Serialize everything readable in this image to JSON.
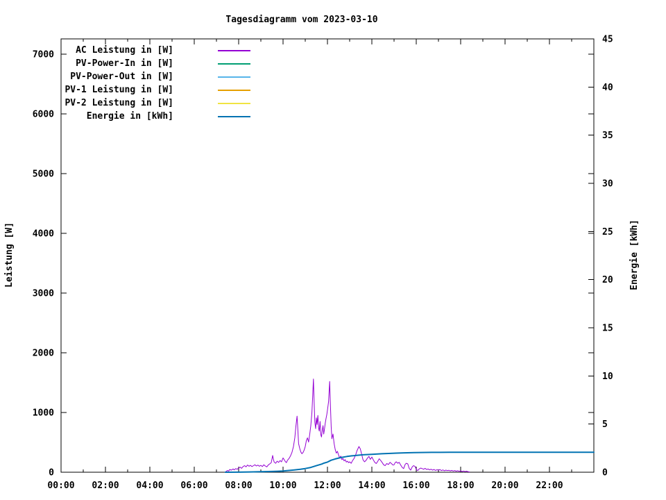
{
  "chart_data": {
    "type": "line",
    "title": "Tagesdiagramm vom 2023-03-10",
    "grid": false,
    "legend_position": "top-left",
    "x_axis": {
      "min_hour": 0,
      "max_hour": 24,
      "major_tick_every_hours": 2,
      "minor_tick_every_hours": 1,
      "tick_labels": [
        "00:00",
        "02:00",
        "04:00",
        "06:00",
        "08:00",
        "10:00",
        "12:00",
        "14:00",
        "16:00",
        "18:00",
        "20:00",
        "22:00"
      ]
    },
    "y_axis": {
      "label": "Leistung [W]",
      "min": 0,
      "max": 7000,
      "tick_step": 1000,
      "tick_labels": [
        "0",
        "1000",
        "2000",
        "3000",
        "4000",
        "5000",
        "6000",
        "7000"
      ]
    },
    "y2_axis": {
      "label": "Energie [kWh]",
      "min": 0,
      "max": 45,
      "tick_step": 5,
      "tick_labels": [
        "0",
        "5",
        "10",
        "15",
        "20",
        "25",
        "30",
        "35",
        "40",
        "45"
      ]
    },
    "series": [
      {
        "name": "AC Leistung in [W]",
        "color": "#9400d3",
        "axis": "y",
        "line_width": 1,
        "points": [
          [
            7.42,
            8
          ],
          [
            7.5,
            30
          ],
          [
            7.55,
            20
          ],
          [
            7.6,
            45
          ],
          [
            7.67,
            35
          ],
          [
            7.75,
            55
          ],
          [
            7.8,
            40
          ],
          [
            7.87,
            60
          ],
          [
            7.93,
            50
          ],
          [
            8.0,
            70
          ],
          [
            8.07,
            85
          ],
          [
            8.13,
            65
          ],
          [
            8.2,
            95
          ],
          [
            8.27,
            110
          ],
          [
            8.33,
            90
          ],
          [
            8.4,
            120
          ],
          [
            8.47,
            100
          ],
          [
            8.53,
            115
          ],
          [
            8.6,
            95
          ],
          [
            8.67,
            110
          ],
          [
            8.73,
            125
          ],
          [
            8.8,
            105
          ],
          [
            8.87,
            120
          ],
          [
            8.93,
            100
          ],
          [
            9.0,
            115
          ],
          [
            9.07,
            95
          ],
          [
            9.13,
            125
          ],
          [
            9.2,
            105
          ],
          [
            9.27,
            90
          ],
          [
            9.33,
            120
          ],
          [
            9.4,
            140
          ],
          [
            9.47,
            160
          ],
          [
            9.53,
            280
          ],
          [
            9.57,
            210
          ],
          [
            9.6,
            170
          ],
          [
            9.67,
            150
          ],
          [
            9.73,
            185
          ],
          [
            9.8,
            165
          ],
          [
            9.87,
            195
          ],
          [
            9.93,
            175
          ],
          [
            10.0,
            240
          ],
          [
            10.05,
            210
          ],
          [
            10.1,
            180
          ],
          [
            10.15,
            160
          ],
          [
            10.2,
            200
          ],
          [
            10.27,
            230
          ],
          [
            10.33,
            270
          ],
          [
            10.4,
            330
          ],
          [
            10.47,
            430
          ],
          [
            10.53,
            580
          ],
          [
            10.58,
            780
          ],
          [
            10.63,
            940
          ],
          [
            10.67,
            700
          ],
          [
            10.7,
            480
          ],
          [
            10.75,
            400
          ],
          [
            10.8,
            340
          ],
          [
            10.85,
            310
          ],
          [
            10.9,
            330
          ],
          [
            10.95,
            370
          ],
          [
            11.0,
            430
          ],
          [
            11.05,
            530
          ],
          [
            11.1,
            575
          ],
          [
            11.15,
            505
          ],
          [
            11.2,
            630
          ],
          [
            11.25,
            780
          ],
          [
            11.3,
            1000
          ],
          [
            11.33,
            1250
          ],
          [
            11.37,
            1560
          ],
          [
            11.4,
            1180
          ],
          [
            11.43,
            840
          ],
          [
            11.47,
            730
          ],
          [
            11.5,
            910
          ],
          [
            11.53,
            800
          ],
          [
            11.57,
            950
          ],
          [
            11.6,
            740
          ],
          [
            11.63,
            690
          ],
          [
            11.67,
            850
          ],
          [
            11.7,
            630
          ],
          [
            11.73,
            590
          ],
          [
            11.77,
            710
          ],
          [
            11.8,
            780
          ],
          [
            11.83,
            640
          ],
          [
            11.87,
            730
          ],
          [
            11.9,
            820
          ],
          [
            11.93,
            890
          ],
          [
            11.97,
            960
          ],
          [
            12.0,
            1040
          ],
          [
            12.05,
            1180
          ],
          [
            12.1,
            1520
          ],
          [
            12.13,
            1150
          ],
          [
            12.17,
            760
          ],
          [
            12.2,
            560
          ],
          [
            12.25,
            640
          ],
          [
            12.3,
            480
          ],
          [
            12.35,
            380
          ],
          [
            12.4,
            320
          ],
          [
            12.45,
            350
          ],
          [
            12.5,
            290
          ],
          [
            12.55,
            240
          ],
          [
            12.6,
            270
          ],
          [
            12.65,
            210
          ],
          [
            12.7,
            230
          ],
          [
            12.75,
            190
          ],
          [
            12.8,
            210
          ],
          [
            12.85,
            170
          ],
          [
            12.9,
            185
          ],
          [
            12.95,
            160
          ],
          [
            13.0,
            175
          ],
          [
            13.07,
            150
          ],
          [
            13.13,
            195
          ],
          [
            13.2,
            230
          ],
          [
            13.27,
            290
          ],
          [
            13.33,
            360
          ],
          [
            13.42,
            430
          ],
          [
            13.48,
            390
          ],
          [
            13.55,
            290
          ],
          [
            13.6,
            210
          ],
          [
            13.67,
            175
          ],
          [
            13.73,
            195
          ],
          [
            13.8,
            235
          ],
          [
            13.87,
            265
          ],
          [
            13.93,
            215
          ],
          [
            14.0,
            255
          ],
          [
            14.07,
            205
          ],
          [
            14.13,
            165
          ],
          [
            14.2,
            145
          ],
          [
            14.27,
            185
          ],
          [
            14.33,
            225
          ],
          [
            14.4,
            195
          ],
          [
            14.47,
            160
          ],
          [
            14.53,
            125
          ],
          [
            14.6,
            110
          ],
          [
            14.67,
            145
          ],
          [
            14.75,
            130
          ],
          [
            14.82,
            165
          ],
          [
            14.88,
            145
          ],
          [
            14.95,
            120
          ],
          [
            15.0,
            125
          ],
          [
            15.05,
            160
          ],
          [
            15.1,
            175
          ],
          [
            15.17,
            150
          ],
          [
            15.23,
            165
          ],
          [
            15.3,
            120
          ],
          [
            15.37,
            80
          ],
          [
            15.43,
            60
          ],
          [
            15.5,
            130
          ],
          [
            15.55,
            150
          ],
          [
            15.62,
            140
          ],
          [
            15.68,
            65
          ],
          [
            15.75,
            35
          ],
          [
            15.82,
            90
          ],
          [
            15.88,
            110
          ],
          [
            15.95,
            95
          ],
          [
            16.0,
            45
          ],
          [
            16.07,
            28
          ],
          [
            16.13,
            55
          ],
          [
            16.2,
            70
          ],
          [
            16.27,
            60
          ],
          [
            16.33,
            50
          ],
          [
            16.4,
            65
          ],
          [
            16.47,
            45
          ],
          [
            16.53,
            55
          ],
          [
            16.6,
            40
          ],
          [
            16.67,
            50
          ],
          [
            16.73,
            35
          ],
          [
            16.8,
            45
          ],
          [
            16.87,
            30
          ],
          [
            16.93,
            42
          ],
          [
            17.0,
            32
          ],
          [
            17.07,
            45
          ],
          [
            17.13,
            28
          ],
          [
            17.2,
            38
          ],
          [
            17.27,
            25
          ],
          [
            17.33,
            35
          ],
          [
            17.4,
            28
          ],
          [
            17.47,
            32
          ],
          [
            17.53,
            22
          ],
          [
            17.6,
            30
          ],
          [
            17.67,
            20
          ],
          [
            17.73,
            28
          ],
          [
            17.8,
            18
          ],
          [
            17.87,
            25
          ],
          [
            17.93,
            15
          ],
          [
            18.0,
            22
          ],
          [
            18.07,
            12
          ],
          [
            18.13,
            20
          ],
          [
            18.2,
            10
          ],
          [
            18.27,
            18
          ],
          [
            18.33,
            8
          ],
          [
            18.4,
            5
          ]
        ]
      },
      {
        "name": "PV-Power-In in [W]",
        "color": "#009e73",
        "axis": "y",
        "line_width": 1,
        "points": []
      },
      {
        "name": "PV-Power-Out in [W]",
        "color": "#56b4e9",
        "axis": "y",
        "line_width": 1,
        "points": []
      },
      {
        "name": "PV-1 Leistung in [W]",
        "color": "#e69f00",
        "axis": "y",
        "line_width": 1,
        "points": []
      },
      {
        "name": "PV-2 Leistung in [W]",
        "color": "#f0e442",
        "axis": "y",
        "line_width": 1,
        "points": []
      },
      {
        "name": "Energie in [kWh]",
        "color": "#0072b2",
        "axis": "y2",
        "line_width": 2,
        "points": [
          [
            7.4,
            0
          ],
          [
            8.0,
            0.01
          ],
          [
            8.5,
            0.03
          ],
          [
            9.0,
            0.06
          ],
          [
            9.5,
            0.08
          ],
          [
            9.75,
            0.1
          ],
          [
            10.0,
            0.13
          ],
          [
            10.25,
            0.18
          ],
          [
            10.5,
            0.24
          ],
          [
            10.78,
            0.3
          ],
          [
            11.0,
            0.38
          ],
          [
            11.25,
            0.5
          ],
          [
            11.5,
            0.68
          ],
          [
            11.75,
            0.85
          ],
          [
            11.83,
            0.94
          ],
          [
            12.0,
            1.05
          ],
          [
            12.17,
            1.25
          ],
          [
            12.35,
            1.38
          ],
          [
            12.6,
            1.52
          ],
          [
            12.88,
            1.64
          ],
          [
            13.1,
            1.7
          ],
          [
            13.35,
            1.76
          ],
          [
            13.6,
            1.81
          ],
          [
            14.0,
            1.86
          ],
          [
            14.45,
            1.92
          ],
          [
            14.75,
            1.95
          ],
          [
            15.1,
            1.98
          ],
          [
            15.45,
            2.01
          ],
          [
            15.9,
            2.04
          ],
          [
            16.7,
            2.06
          ],
          [
            17.5,
            2.07
          ],
          [
            18.5,
            2.08
          ],
          [
            24,
            2.08
          ]
        ]
      }
    ]
  }
}
